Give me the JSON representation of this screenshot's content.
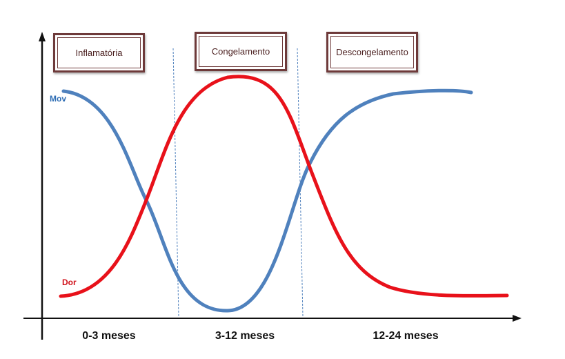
{
  "phases": [
    {
      "label": "Inflamatória"
    },
    {
      "label": "Congelamento"
    },
    {
      "label": "Descongelamento"
    }
  ],
  "periods": [
    {
      "label": "0-3 meses"
    },
    {
      "label": "3-12 meses"
    },
    {
      "label": "12-24 meses"
    }
  ],
  "series": {
    "mov": {
      "label": "Mov",
      "color": "#4f81bd"
    },
    "dor": {
      "label": "Dor",
      "color": "#e8111a"
    }
  },
  "colors": {
    "box_border": "#6e3a3a",
    "axis": "#111111",
    "divider": "#4f81bd"
  }
}
